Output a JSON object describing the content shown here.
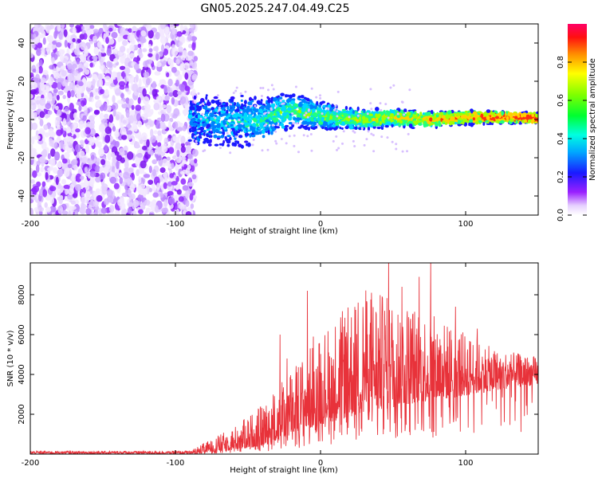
{
  "figure": {
    "title": "GN05.2025.247.04.49.C25"
  },
  "chart_data": [
    {
      "type": "heatmap",
      "xlabel": "Height of straight line (km)",
      "ylabel": "Frequency (Hz)",
      "xlim": [
        -200,
        150
      ],
      "ylim": [
        -50,
        50
      ],
      "xticks": [
        -200,
        -100,
        0,
        100
      ],
      "yticks": [
        -40,
        -20,
        0,
        20,
        40
      ],
      "noise_region_x": [
        -200,
        -88
      ],
      "signal_center_freq_hz": [
        {
          "x": -85,
          "y": 0
        },
        {
          "x": -60,
          "y": -1
        },
        {
          "x": -40,
          "y": 0
        },
        {
          "x": -20,
          "y": 5
        },
        {
          "x": 0,
          "y": 2
        },
        {
          "x": 25,
          "y": 0
        },
        {
          "x": 50,
          "y": 1
        },
        {
          "x": 75,
          "y": 0
        },
        {
          "x": 100,
          "y": 1
        },
        {
          "x": 125,
          "y": 1
        },
        {
          "x": 150,
          "y": 1
        }
      ],
      "signal_bandwidth_hz": [
        {
          "x": -85,
          "y": 16
        },
        {
          "x": -50,
          "y": 14
        },
        {
          "x": -20,
          "y": 10
        },
        {
          "x": 20,
          "y": 6
        },
        {
          "x": 100,
          "y": 4
        },
        {
          "x": 150,
          "y": 3
        }
      ],
      "colorbar": {
        "label": "Normalized spectral amplitude",
        "range": [
          0,
          1
        ],
        "ticks": [
          "0.0",
          "0.2",
          "0.4",
          "0.6",
          "0.8"
        ]
      }
    },
    {
      "type": "line",
      "xlabel": "Height of straight line (km)",
      "ylabel": "SNR (10 * v/v)",
      "xlim": [
        -200,
        150
      ],
      "ylim": [
        0,
        9600
      ],
      "xticks": [
        -200,
        -100,
        0,
        100
      ],
      "yticks": [
        2000,
        4000,
        6000,
        8000
      ],
      "series_color": "#e8323a",
      "envelope": [
        {
          "x": -200,
          "baseline": 0,
          "peak": 150
        },
        {
          "x": -90,
          "baseline": 0,
          "peak": 150
        },
        {
          "x": -80,
          "baseline": 50,
          "peak": 500
        },
        {
          "x": -60,
          "baseline": 200,
          "peak": 1200
        },
        {
          "x": -40,
          "baseline": 400,
          "peak": 2200
        },
        {
          "x": -20,
          "baseline": 900,
          "peak": 3800
        },
        {
          "x": 0,
          "baseline": 1500,
          "peak": 5500
        },
        {
          "x": 30,
          "baseline": 2000,
          "peak": 7500
        },
        {
          "x": 60,
          "baseline": 2500,
          "peak": 7000
        },
        {
          "x": 90,
          "baseline": 2800,
          "peak": 6000
        },
        {
          "x": 120,
          "baseline": 3200,
          "peak": 5000
        },
        {
          "x": 150,
          "baseline": 3500,
          "peak": 4700
        }
      ],
      "spikes": [
        {
          "x": -28,
          "y": 6000
        },
        {
          "x": -23,
          "y": 4800
        },
        {
          "x": -9,
          "y": 8200
        },
        {
          "x": -5,
          "y": 5900
        },
        {
          "x": 16,
          "y": 6400
        },
        {
          "x": 35,
          "y": 8100
        },
        {
          "x": 47,
          "y": 9600
        },
        {
          "x": 56,
          "y": 8400
        },
        {
          "x": 68,
          "y": 8900
        },
        {
          "x": 76,
          "y": 9600
        },
        {
          "x": 93,
          "y": 7400
        },
        {
          "x": 108,
          "y": 6300
        }
      ]
    }
  ]
}
